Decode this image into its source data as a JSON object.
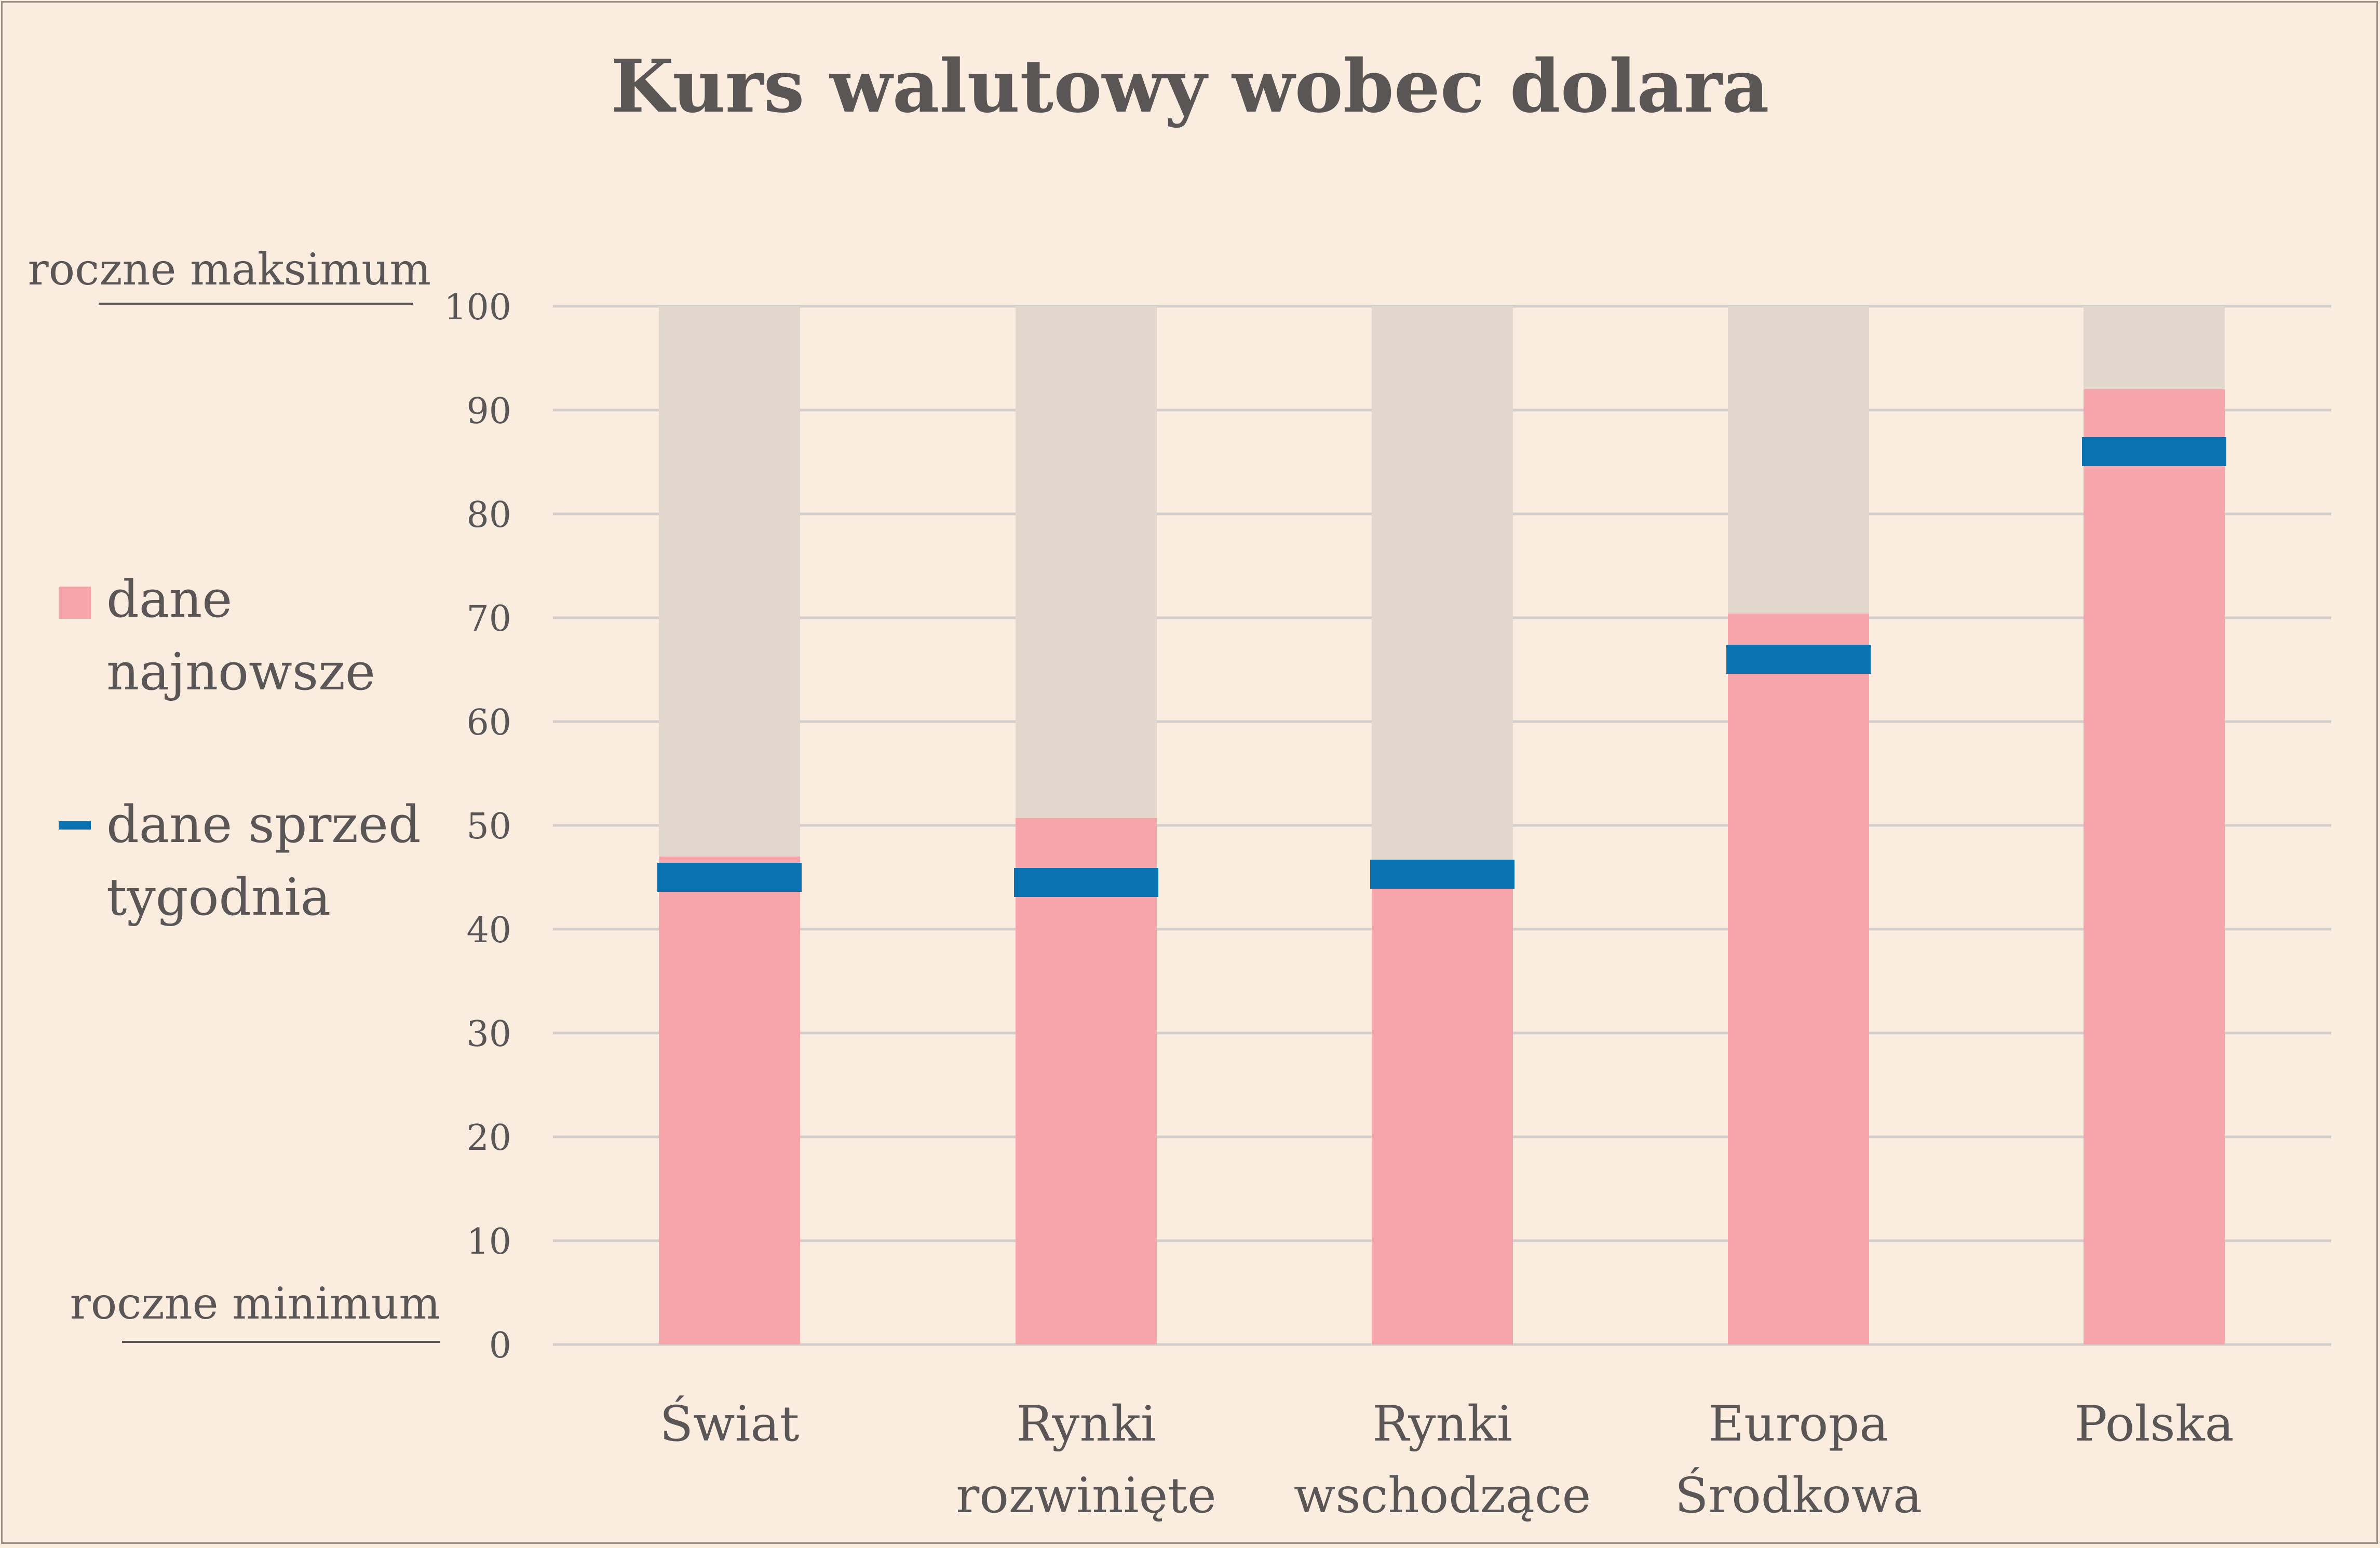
{
  "chart_data": {
    "type": "bar",
    "title": "Kurs walutowy wobec dolara",
    "top_label": "roczne maksimum",
    "bottom_label": "roczne minimum",
    "categories": [
      [
        "Świat"
      ],
      [
        "Rynki",
        "rozwinięte"
      ],
      [
        "Rynki",
        "wschodzące"
      ],
      [
        "Europa",
        "Środkowa"
      ],
      [
        "Polska"
      ]
    ],
    "ylim": [
      0,
      100
    ],
    "yticks": [
      0,
      10,
      20,
      30,
      40,
      50,
      60,
      70,
      80,
      90,
      100
    ],
    "grid": true,
    "legend_position": "left",
    "series": [
      {
        "name": [
          "dane",
          "najnowsze"
        ],
        "kind": "bar",
        "color": "#f6a5ab",
        "values": [
          47,
          50.7,
          44,
          70.4,
          92
        ]
      },
      {
        "name": [
          "dane sprzed",
          "tygodnia"
        ],
        "kind": "marker",
        "color": "#0b72b2",
        "values": [
          45,
          44.5,
          45.3,
          66,
          86
        ]
      }
    ],
    "background_bar": {
      "value": 100,
      "color": "#e2d7cc"
    }
  }
}
